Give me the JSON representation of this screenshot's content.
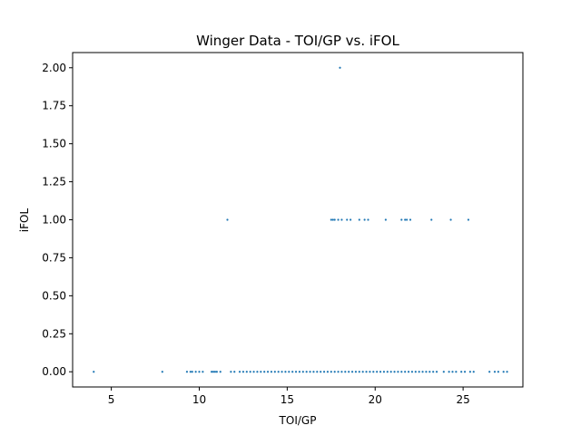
{
  "chart_data": {
    "type": "scatter",
    "title": "Winger Data - TOI/GP vs. iFOL",
    "xlabel": "TOI/GP",
    "ylabel": "iFOL",
    "xlim": [
      2.8,
      28.4
    ],
    "ylim": [
      -0.1,
      2.1
    ],
    "xticks": [
      5,
      10,
      15,
      20,
      25
    ],
    "xtick_labels": [
      "5",
      "10",
      "15",
      "20",
      "25"
    ],
    "yticks": [
      0,
      0.25,
      0.5,
      0.75,
      1.0,
      1.25,
      1.5,
      1.75,
      2.0
    ],
    "ytick_labels": [
      "0.00",
      "0.25",
      "0.50",
      "0.75",
      "1.00",
      "1.25",
      "1.50",
      "1.75",
      "2.00"
    ],
    "grid": false,
    "marker_color": "#1f77b4",
    "series": [
      {
        "points": [
          [
            4.0,
            0
          ],
          [
            7.9,
            0
          ],
          [
            9.3,
            0
          ],
          [
            9.5,
            0
          ],
          [
            9.6,
            0
          ],
          [
            9.8,
            0
          ],
          [
            10.0,
            0
          ],
          [
            10.2,
            0
          ],
          [
            10.7,
            0
          ],
          [
            10.8,
            0
          ],
          [
            10.9,
            0
          ],
          [
            11.0,
            0
          ],
          [
            11.2,
            0
          ],
          [
            11.8,
            0
          ],
          [
            12.0,
            0
          ],
          [
            12.3,
            0
          ],
          [
            12.5,
            0
          ],
          [
            12.7,
            0
          ],
          [
            12.9,
            0
          ],
          [
            13.1,
            0
          ],
          [
            13.3,
            0
          ],
          [
            13.5,
            0
          ],
          [
            13.7,
            0
          ],
          [
            13.9,
            0
          ],
          [
            14.1,
            0
          ],
          [
            14.3,
            0
          ],
          [
            14.5,
            0
          ],
          [
            14.7,
            0
          ],
          [
            14.9,
            0
          ],
          [
            15.1,
            0
          ],
          [
            15.3,
            0
          ],
          [
            15.5,
            0
          ],
          [
            15.7,
            0
          ],
          [
            15.9,
            0
          ],
          [
            16.1,
            0
          ],
          [
            16.3,
            0
          ],
          [
            16.5,
            0
          ],
          [
            16.7,
            0
          ],
          [
            16.9,
            0
          ],
          [
            17.1,
            0
          ],
          [
            17.3,
            0
          ],
          [
            17.5,
            0
          ],
          [
            17.7,
            0
          ],
          [
            17.9,
            0
          ],
          [
            18.1,
            0
          ],
          [
            18.3,
            0
          ],
          [
            18.5,
            0
          ],
          [
            18.7,
            0
          ],
          [
            18.9,
            0
          ],
          [
            19.1,
            0
          ],
          [
            19.3,
            0
          ],
          [
            19.5,
            0
          ],
          [
            19.7,
            0
          ],
          [
            19.9,
            0
          ],
          [
            20.1,
            0
          ],
          [
            20.3,
            0
          ],
          [
            20.5,
            0
          ],
          [
            20.7,
            0
          ],
          [
            20.9,
            0
          ],
          [
            21.1,
            0
          ],
          [
            21.3,
            0
          ],
          [
            21.5,
            0
          ],
          [
            21.7,
            0
          ],
          [
            21.9,
            0
          ],
          [
            22.1,
            0
          ],
          [
            22.3,
            0
          ],
          [
            22.5,
            0
          ],
          [
            22.7,
            0
          ],
          [
            22.9,
            0
          ],
          [
            23.1,
            0
          ],
          [
            23.3,
            0
          ],
          [
            23.5,
            0
          ],
          [
            23.9,
            0
          ],
          [
            24.2,
            0
          ],
          [
            24.4,
            0
          ],
          [
            24.6,
            0
          ],
          [
            24.9,
            0
          ],
          [
            25.1,
            0
          ],
          [
            25.4,
            0
          ],
          [
            25.6,
            0
          ],
          [
            26.5,
            0
          ],
          [
            26.8,
            0
          ],
          [
            27.0,
            0
          ],
          [
            27.3,
            0
          ],
          [
            27.5,
            0
          ],
          [
            11.6,
            1
          ],
          [
            17.5,
            1
          ],
          [
            17.6,
            1
          ],
          [
            17.7,
            1
          ],
          [
            17.9,
            1
          ],
          [
            18.1,
            1
          ],
          [
            18.4,
            1
          ],
          [
            18.6,
            1
          ],
          [
            19.1,
            1
          ],
          [
            19.4,
            1
          ],
          [
            19.6,
            1
          ],
          [
            20.6,
            1
          ],
          [
            21.5,
            1
          ],
          [
            21.7,
            1
          ],
          [
            21.8,
            1
          ],
          [
            22.0,
            1
          ],
          [
            23.2,
            1
          ],
          [
            24.3,
            1
          ],
          [
            25.3,
            1
          ],
          [
            18.0,
            2
          ]
        ]
      }
    ]
  }
}
